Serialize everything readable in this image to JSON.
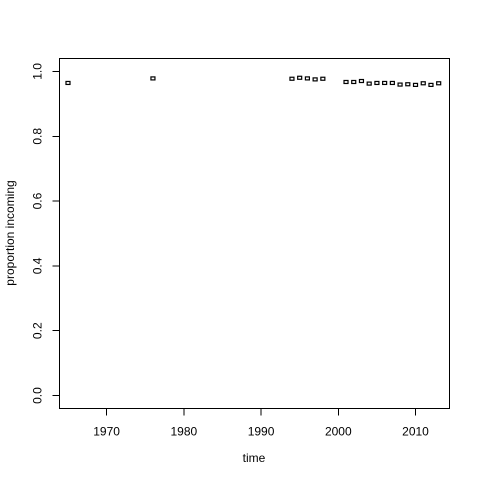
{
  "chart_data": {
    "type": "scatter",
    "title": "",
    "xlabel": "time",
    "ylabel": "proportion incoming",
    "xlim": [
      1963.9,
      2014.4
    ],
    "ylim": [
      -0.04,
      1.04
    ],
    "x_ticks": [
      1970,
      1980,
      1990,
      2000,
      2010
    ],
    "y_ticks": [
      0.0,
      0.2,
      0.4,
      0.6,
      0.8,
      1.0
    ],
    "x_tick_labels": [
      "1970",
      "1980",
      "1990",
      "2000",
      "2010"
    ],
    "y_tick_labels": [
      "0.0",
      "0.2",
      "0.4",
      "0.6",
      "0.8",
      "1.0"
    ],
    "grid": false,
    "legend": "none",
    "marker": "hollow-square",
    "series": [
      {
        "x": [
          1965,
          1976,
          1994,
          1995,
          1996,
          1997,
          1998,
          2001,
          2002,
          2003,
          2004,
          2005,
          2006,
          2007,
          2008,
          2009,
          2010,
          2011,
          2012,
          2013
        ],
        "y": [
          0.963,
          0.977,
          0.976,
          0.979,
          0.977,
          0.974,
          0.976,
          0.966,
          0.966,
          0.969,
          0.961,
          0.963,
          0.963,
          0.963,
          0.958,
          0.959,
          0.957,
          0.962,
          0.957,
          0.962
        ]
      }
    ]
  }
}
